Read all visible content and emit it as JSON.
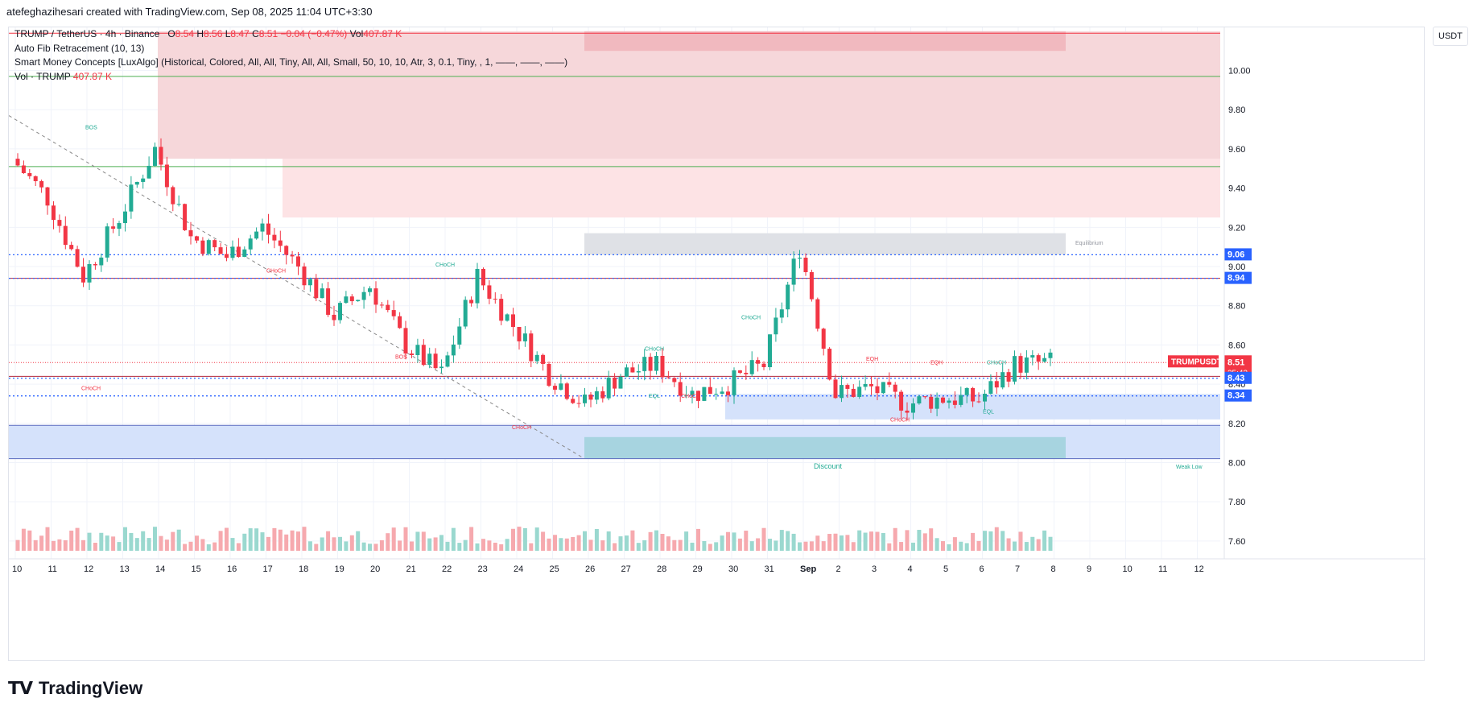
{
  "credit": "atefeghazihesari created with TradingView.com, Sep 08, 2025 11:04 UTC+3:30",
  "legend": {
    "symbol": "TRUMP / TetherUS · 4h · Binance",
    "o_label": "O",
    "o_value": "8.54",
    "h_label": "H",
    "h_value": "8.56",
    "l_label": "L",
    "l_value": "8.47",
    "c_label": "C",
    "c_value": "8.51",
    "change": "−0.04 (−0.47%)",
    "vol_label": "Vol",
    "vol_value": "407.87 K",
    "indicator_1": "Auto Fib Retracement (10, 13)",
    "indicator_2": "Smart Money Concepts [LuxAlgo] (Historical, Colored, All, All, Tiny, All, All, Small, 50, 10, 10, Atr, 3, 0.1, Tiny, , 1, ——, ——, ——)",
    "indicator_3_label": "Vol · TRUMP",
    "indicator_3_value": "407.87 K"
  },
  "unit": "USDT",
  "brand": "TradingView",
  "colors": {
    "up": "#22ab94",
    "down": "#f23645",
    "blue_line": "#2962ff",
    "premium": "#f2c4c8",
    "discount": "#b9d0fb",
    "equilibrium": "#d1d4dc"
  },
  "chart_data": {
    "type": "candlestick",
    "symbol": "TRUMPUSDT",
    "timeframe": "4h",
    "ylim": [
      7.55,
      10.22
    ],
    "y_ticks": [
      "10.00",
      "9.80",
      "9.60",
      "9.40",
      "9.20",
      "9.00",
      "8.80",
      "8.60",
      "8.40",
      "8.20",
      "8.00",
      "7.80",
      "7.60"
    ],
    "y_tick_values": [
      10.0,
      9.8,
      9.6,
      9.4,
      9.2,
      9.0,
      8.8,
      8.6,
      8.4,
      8.2,
      8.0,
      7.8,
      7.6
    ],
    "x_ticks": [
      "10",
      "11",
      "12",
      "13",
      "14",
      "15",
      "16",
      "17",
      "18",
      "19",
      "20",
      "21",
      "22",
      "23",
      "24",
      "25",
      "26",
      "27",
      "28",
      "29",
      "30",
      "31",
      "Sep",
      "2",
      "3",
      "4",
      "5",
      "6",
      "7",
      "8",
      "9",
      "10",
      "11",
      "12"
    ],
    "price_labels": [
      {
        "text": "9.06",
        "value": 9.06,
        "color": "#2962ff"
      },
      {
        "text": "8.94",
        "value": 8.94,
        "color": "#2962ff"
      },
      {
        "text": "8.51",
        "value": 8.51,
        "color": "#f23645",
        "symbol": "TRUMPUSDT",
        "countdown": "25:43"
      },
      {
        "text": "8.43",
        "value": 8.43,
        "color": "#2962ff"
      },
      {
        "text": "8.34",
        "value": 8.34,
        "color": "#2962ff"
      }
    ],
    "zones": {
      "premium": [
        9.25,
        10.2
      ],
      "equilibrium": [
        9.06,
        9.17
      ],
      "discount": [
        8.02,
        8.19
      ],
      "order_block_top": [
        10.1,
        10.2
      ],
      "demand_zone": [
        8.22,
        8.35
      ]
    },
    "annotations": [
      "BOS",
      "CHoCH",
      "CHoCH",
      "CHoCH",
      "BOS",
      "CHoCH",
      "CHoCH",
      "CHoCH",
      "EQL",
      "CHoCH",
      "CHoCH",
      "EQH",
      "EQH",
      "CHoCH",
      "CHoCH",
      "EQL",
      "Equilibrium",
      "Discount",
      "Weak Low",
      "CHoCH"
    ],
    "close_samples": [
      {
        "x": "10",
        "close": 9.55
      },
      {
        "x": "11",
        "close": 9.35
      },
      {
        "x": "12",
        "close": 8.95
      },
      {
        "x": "13",
        "close": 9.25
      },
      {
        "x": "14",
        "close": 9.6
      },
      {
        "x": "15",
        "close": 9.15
      },
      {
        "x": "16",
        "close": 9.05
      },
      {
        "x": "17",
        "close": 9.2
      },
      {
        "x": "18",
        "close": 9.0
      },
      {
        "x": "19",
        "close": 8.75
      },
      {
        "x": "20",
        "close": 8.9
      },
      {
        "x": "21",
        "close": 8.6
      },
      {
        "x": "22",
        "close": 8.45
      },
      {
        "x": "23",
        "close": 8.95
      },
      {
        "x": "24",
        "close": 8.7
      },
      {
        "x": "25",
        "close": 8.45
      },
      {
        "x": "26",
        "close": 8.3
      },
      {
        "x": "27",
        "close": 8.45
      },
      {
        "x": "28",
        "close": 8.5
      },
      {
        "x": "29",
        "close": 8.35
      },
      {
        "x": "30",
        "close": 8.4
      },
      {
        "x": "31",
        "close": 8.5
      },
      {
        "x": "Sep",
        "close": 9.1
      },
      {
        "x": "2",
        "close": 8.35
      },
      {
        "x": "3",
        "close": 8.38
      },
      {
        "x": "4",
        "close": 8.3
      },
      {
        "x": "5",
        "close": 8.33
      },
      {
        "x": "6",
        "close": 8.32
      },
      {
        "x": "7",
        "close": 8.5
      },
      {
        "x": "8",
        "close": 8.51
      }
    ]
  }
}
